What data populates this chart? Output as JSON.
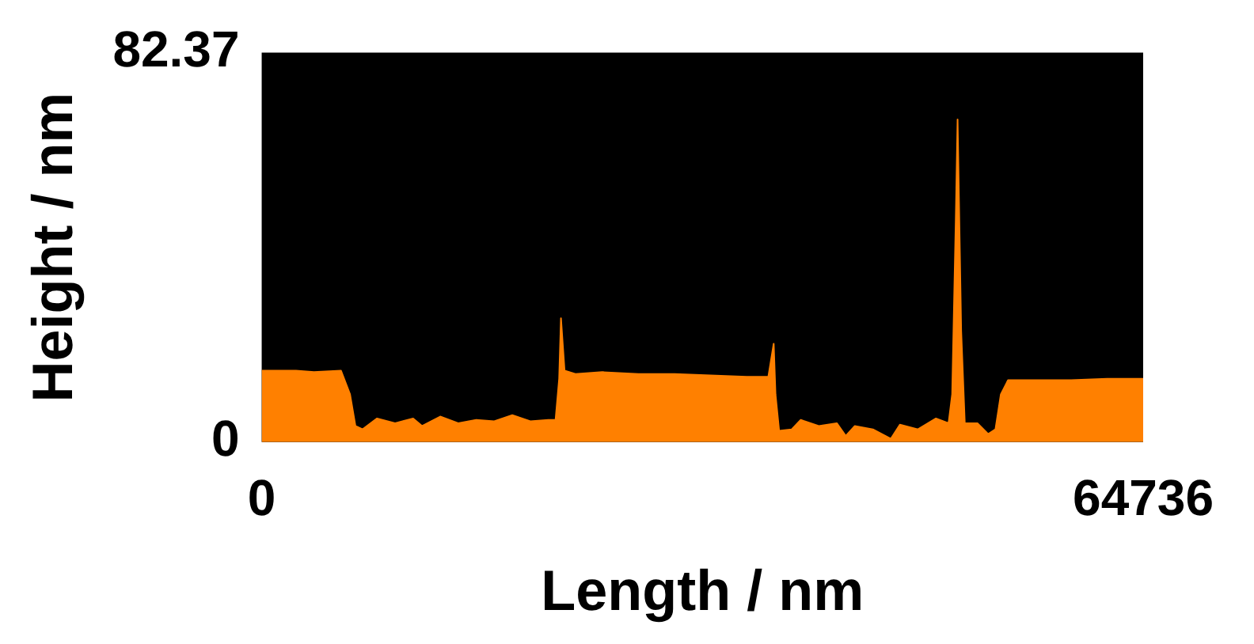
{
  "chart_data": {
    "type": "area",
    "xlabel": "Length / nm",
    "ylabel": "Height / nm",
    "xlim": [
      0,
      64736
    ],
    "ylim": [
      0,
      82.37
    ],
    "xticks": [
      0,
      64736
    ],
    "yticks": [
      0,
      82.37
    ],
    "grid": false,
    "legend": false,
    "marker": "none",
    "series": [
      {
        "color": "#ff8000",
        "x": [
          0,
          2516,
          3840,
          5826,
          6488,
          6885,
          7414,
          8474,
          9798,
          11122,
          11784,
          13108,
          14432,
          15756,
          17080,
          18404,
          19728,
          21052,
          21581,
          21846,
          21978,
          22243,
          23038,
          25024,
          27672,
          30320,
          32968,
          35616,
          37205,
          37602,
          37734,
          38000,
          38926,
          39588,
          40912,
          42236,
          42898,
          43560,
          44884,
          46208,
          46870,
          48194,
          49518,
          50444,
          50709,
          50974,
          51106,
          51371,
          51636,
          52563,
          53357,
          53887,
          54284,
          54814,
          56800,
          59448,
          62096,
          64736
        ],
        "values": [
          15.1,
          15.1,
          14.8,
          15.1,
          10.1,
          3.4,
          2.7,
          5.0,
          4.0,
          5.0,
          3.4,
          5.4,
          4.0,
          4.7,
          4.4,
          5.7,
          4.4,
          4.7,
          4.7,
          13.4,
          26.2,
          15.1,
          14.4,
          14.8,
          14.4,
          14.4,
          14.1,
          13.8,
          13.8,
          20.8,
          10.1,
          2.4,
          2.7,
          4.7,
          3.4,
          4.0,
          1.3,
          3.4,
          2.7,
          0.7,
          3.7,
          2.7,
          5.0,
          4.0,
          10.1,
          47.0,
          68.2,
          23.5,
          4.0,
          4.0,
          1.7,
          2.7,
          10.1,
          13.1,
          13.1,
          13.1,
          13.4,
          13.4
        ]
      }
    ]
  }
}
